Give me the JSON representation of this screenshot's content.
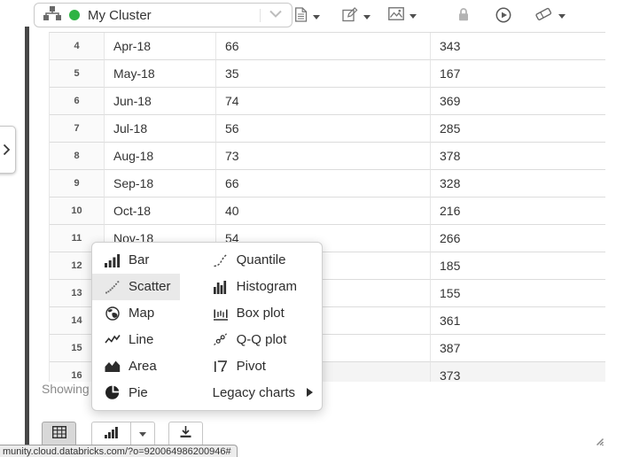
{
  "toolbar": {
    "cluster": {
      "name": "My Cluster",
      "status_color": "#2fb344"
    },
    "icons": [
      "sitemap-icon",
      "chevron-down-icon",
      "document-icon",
      "edit-pencil-icon",
      "image-icon",
      "lock-icon",
      "play-circle-icon",
      "eraser-icon"
    ]
  },
  "table": {
    "rows": [
      {
        "num": "4",
        "month": "Apr-18",
        "value1": "66",
        "value2": "343"
      },
      {
        "num": "5",
        "month": "May-18",
        "value1": "35",
        "value2": "167"
      },
      {
        "num": "6",
        "month": "Jun-18",
        "value1": "74",
        "value2": "369"
      },
      {
        "num": "7",
        "month": "Jul-18",
        "value1": "56",
        "value2": "285"
      },
      {
        "num": "8",
        "month": "Aug-18",
        "value1": "73",
        "value2": "378"
      },
      {
        "num": "9",
        "month": "Sep-18",
        "value1": "66",
        "value2": "328"
      },
      {
        "num": "10",
        "month": "Oct-18",
        "value1": "40",
        "value2": "216"
      },
      {
        "num": "11",
        "month": "Nov-18",
        "value1": "54",
        "value2": "266"
      },
      {
        "num": "12",
        "month": "",
        "value1": "",
        "value2": "185"
      },
      {
        "num": "13",
        "month": "",
        "value1": "",
        "value2": "155"
      },
      {
        "num": "14",
        "month": "",
        "value1": "",
        "value2": "361"
      },
      {
        "num": "15",
        "month": "",
        "value1": "",
        "value2": "387"
      },
      {
        "num": "16",
        "month": "",
        "value1": "",
        "value2": "373",
        "hover": true
      }
    ]
  },
  "showing_label": "Showing",
  "chart_menu": {
    "columns": [
      {
        "items": [
          {
            "label": "Bar",
            "icon": "bar-chart-icon"
          },
          {
            "label": "Scatter",
            "icon": "scatter-chart-icon",
            "selected": true
          },
          {
            "label": "Map",
            "icon": "map-globe-icon"
          },
          {
            "label": "Line",
            "icon": "line-chart-icon"
          },
          {
            "label": "Area",
            "icon": "area-chart-icon"
          },
          {
            "label": "Pie",
            "icon": "pie-chart-icon"
          }
        ]
      },
      {
        "items": [
          {
            "label": "Quantile",
            "icon": "quantile-plot-icon"
          },
          {
            "label": "Histogram",
            "icon": "histogram-icon"
          },
          {
            "label": "Box plot",
            "icon": "box-plot-icon"
          },
          {
            "label": "Q-Q plot",
            "icon": "qq-plot-icon"
          },
          {
            "label": "Pivot",
            "icon": "pivot-icon"
          },
          {
            "label": "Legacy charts",
            "submenu": true
          }
        ]
      }
    ]
  },
  "bottom_toolbar": {
    "icons": [
      "table-grid-icon",
      "bar-chart-icon",
      "chevron-down-icon",
      "download-icon"
    ]
  },
  "status_url": "munity.cloud.databricks.com/?o=920064986200946#"
}
